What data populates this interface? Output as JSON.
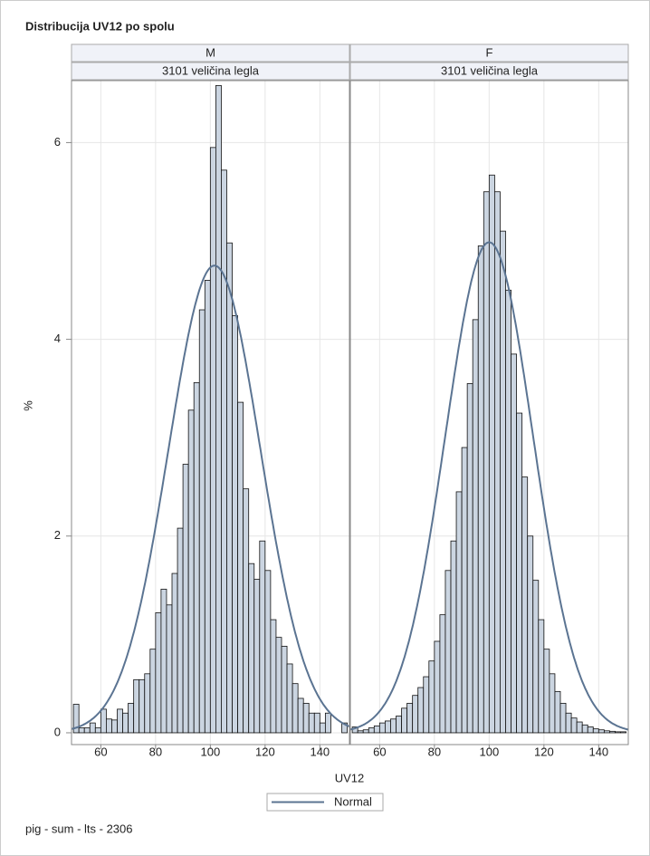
{
  "chart_data": {
    "type": "histogram",
    "title": "Distribucija UV12 po spolu",
    "x_label": "UV12",
    "y_label": "%",
    "footnote": "pig - sum - lts - 2306",
    "legend": {
      "label": "Normal",
      "position": "bottom"
    },
    "bar_color": "#cbd5e1",
    "curve_color": "#5b7492",
    "grid": true,
    "xlim": [
      49.3,
      150.8
    ],
    "ylim": [
      -0.12,
      6.63
    ],
    "xticks": [
      60,
      80,
      100,
      120,
      140
    ],
    "yticks": [
      0,
      2,
      4,
      6
    ],
    "bins": [
      50,
      52,
      54,
      56,
      58,
      60,
      62,
      64,
      66,
      68,
      70,
      72,
      74,
      76,
      78,
      80,
      82,
      84,
      86,
      88,
      90,
      92,
      94,
      96,
      98,
      100,
      102,
      104,
      106,
      108,
      110,
      112,
      114,
      116,
      118,
      120,
      122,
      124,
      126,
      128,
      130,
      132,
      134,
      136,
      138,
      140,
      142,
      144,
      146,
      148,
      150
    ],
    "panels": [
      {
        "name": "M",
        "subtitle": "3101 veličina legla",
        "values": [
          0.29,
          0.05,
          0.05,
          0.1,
          0.05,
          0.24,
          0.14,
          0.13,
          0.24,
          0.2,
          0.3,
          0.54,
          0.54,
          0.6,
          0.85,
          1.22,
          1.46,
          1.3,
          1.62,
          2.08,
          2.73,
          3.28,
          3.56,
          4.3,
          4.6,
          5.95,
          6.58,
          5.72,
          4.98,
          4.24,
          3.36,
          2.48,
          1.72,
          1.56,
          1.95,
          1.65,
          1.15,
          0.97,
          0.88,
          0.7,
          0.5,
          0.35,
          0.3,
          0.2,
          0.2,
          0.1,
          0.2,
          0,
          0,
          0.1
        ],
        "normal": {
          "mean": 101.5,
          "sd": 16.8
        }
      },
      {
        "name": "F",
        "subtitle": "3101 veličina legla",
        "values": [
          0.06,
          0.02,
          0.03,
          0.05,
          0.07,
          0.1,
          0.12,
          0.14,
          0.17,
          0.25,
          0.3,
          0.38,
          0.46,
          0.57,
          0.73,
          0.93,
          1.2,
          1.65,
          1.95,
          2.45,
          2.9,
          3.55,
          4.2,
          4.95,
          5.5,
          5.67,
          5.5,
          5.1,
          4.5,
          3.85,
          3.25,
          2.6,
          2.0,
          1.55,
          1.15,
          0.85,
          0.6,
          0.42,
          0.3,
          0.2,
          0.15,
          0.11,
          0.08,
          0.06,
          0.04,
          0.03,
          0.02,
          0.015,
          0.01,
          0.01
        ],
        "normal": {
          "mean": 100,
          "sd": 16.0
        }
      }
    ]
  }
}
